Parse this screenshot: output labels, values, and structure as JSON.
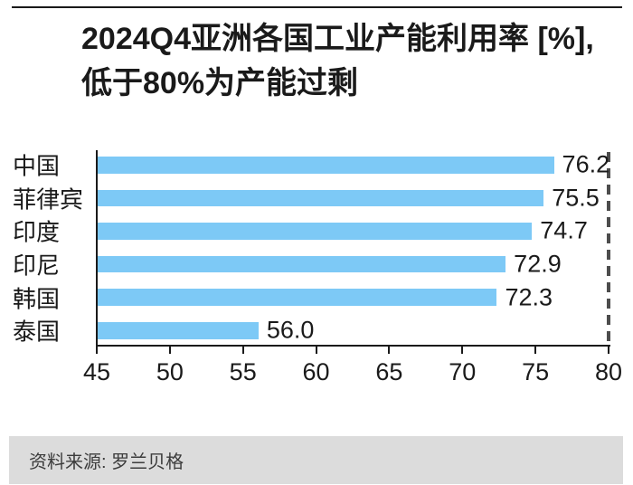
{
  "title": {
    "line1": "2024Q4亚洲各国工业产能利用率 [%],",
    "line2": "低于80%为产能过剩"
  },
  "chart_data": {
    "type": "bar",
    "orientation": "horizontal",
    "title": "2024Q4亚洲各国工业产能利用率 [%], 低于80%为产能过剩",
    "categories": [
      "中国",
      "菲律宾",
      "印度",
      "印尼",
      "韩国",
      "泰国"
    ],
    "values": [
      76.2,
      75.5,
      74.7,
      72.9,
      72.3,
      56.0
    ],
    "value_labels": [
      "76.2",
      "75.5",
      "74.7",
      "72.9",
      "72.3",
      "56.0"
    ],
    "x_ticks": [
      45,
      50,
      55,
      60,
      65,
      70,
      75,
      80
    ],
    "xlim": [
      45,
      80
    ],
    "grid": false,
    "legend": "none",
    "reference_line": {
      "value": 80,
      "meaning": "产能过剩阈值",
      "style": "dashed"
    }
  },
  "footer": {
    "source": "资料来源: 罗兰贝格"
  },
  "colors": {
    "bar": "#7dc9f6",
    "text": "#1a1a1a",
    "axis": "#1a1a1a",
    "dashed_line": "#4d4d4d",
    "footer_bg": "#dcdcdc",
    "footer_text": "#3c3c3c"
  }
}
